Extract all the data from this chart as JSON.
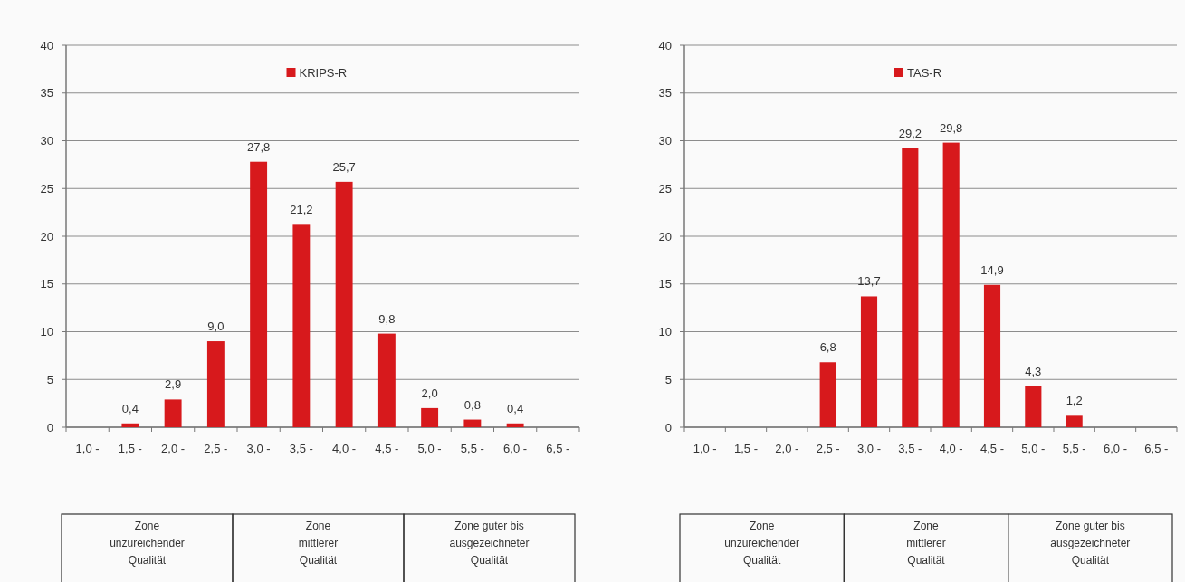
{
  "chart_data": [
    {
      "type": "bar",
      "categories": [
        "1,0 -",
        "1,5 -",
        "2,0 -",
        "2,5 -",
        "3,0 -",
        "3,5 -",
        "4,0 -",
        "4,5 -",
        "5,0 -",
        "5,5 -",
        "6,0 -",
        "6,5 -"
      ],
      "series": [
        {
          "name": "KRIPS-R",
          "color": "#d7191c",
          "values": [
            null,
            0.4,
            2.9,
            9.0,
            27.8,
            21.2,
            25.7,
            9.8,
            2.0,
            0.8,
            0.4,
            null
          ],
          "value_labels": [
            null,
            "0,4",
            "2,9",
            "9,0",
            "27,8",
            "21,2",
            "25,7",
            "9,8",
            "2,0",
            "0,8",
            "0,4",
            null
          ]
        }
      ],
      "ylim": [
        0,
        40
      ],
      "yticks": [
        0,
        5,
        10,
        15,
        20,
        25,
        30,
        35,
        40
      ],
      "grid": "y",
      "legend": "top",
      "annotations": [
        "Zone\nunzureichender\nQualität",
        "Zone\nmittlerer\nQualität",
        "Zone guter bis\nausgezeichneter\nQualität"
      ]
    },
    {
      "type": "bar",
      "categories": [
        "1,0 -",
        "1,5 -",
        "2,0 -",
        "2,5 -",
        "3,0 -",
        "3,5 -",
        "4,0 -",
        "4,5 -",
        "5,0 -",
        "5,5 -",
        "6,0 -",
        "6,5 -"
      ],
      "series": [
        {
          "name": "TAS-R",
          "color": "#d7191c",
          "values": [
            null,
            null,
            null,
            6.8,
            13.7,
            29.2,
            29.8,
            14.9,
            4.3,
            1.2,
            null,
            null
          ],
          "value_labels": [
            null,
            null,
            null,
            "6,8",
            "13,7",
            "29,2",
            "29,8",
            "14,9",
            "4,3",
            "1,2",
            null,
            null
          ]
        }
      ],
      "ylim": [
        0,
        40
      ],
      "yticks": [
        0,
        5,
        10,
        15,
        20,
        25,
        30,
        35,
        40
      ],
      "grid": "y",
      "legend": "top",
      "annotations": [
        "Zone\nunzureichender\nQualität",
        "Zone\nmittlerer\nQualität",
        "Zone guter bis\nausgezeichneter\nQualität"
      ]
    }
  ]
}
